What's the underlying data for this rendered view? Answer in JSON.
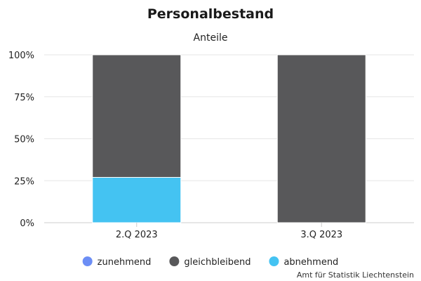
{
  "chart_data": {
    "type": "bar",
    "stacked": true,
    "stacking": "percent",
    "title": "Personalbestand",
    "subtitle": "Anteile",
    "categories": [
      "2.Q 2023",
      "3.Q 2023"
    ],
    "series": [
      {
        "name": "zunehmend",
        "color": "#6c8ef5",
        "values": [
          0,
          0
        ]
      },
      {
        "name": "gleichbleibend",
        "color": "#58585a",
        "values": [
          73,
          100
        ]
      },
      {
        "name": "abnehmend",
        "color": "#44c3f2",
        "values": [
          27,
          0
        ]
      }
    ],
    "ylim": [
      0,
      100
    ],
    "yticks": [
      "0%",
      "25%",
      "50%",
      "75%",
      "100%"
    ],
    "grid": true,
    "legend": "bottom-center",
    "credit": "Amt für Statistik Liechtenstein"
  }
}
